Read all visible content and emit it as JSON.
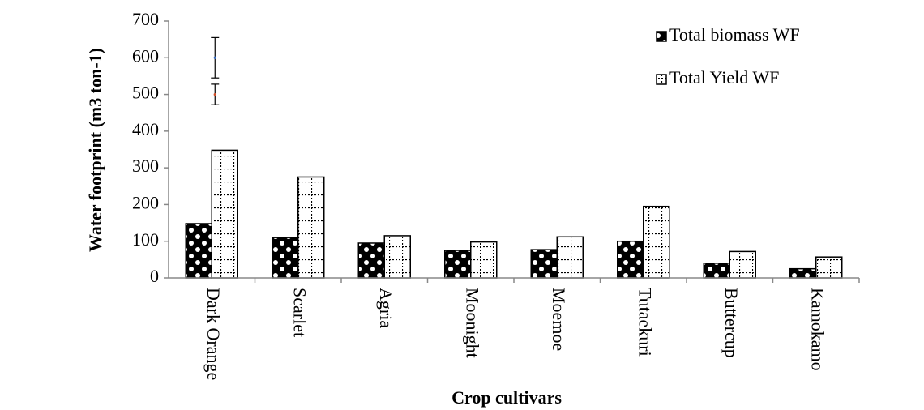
{
  "chart_data": {
    "type": "bar",
    "x_label": "Crop cultivars",
    "y_label": "Water footprint (m3 ton-1)",
    "categories": [
      "Dark Orange",
      "Scarlet",
      "Agria",
      "Moonight",
      "Moemoe",
      "Tutaekuri",
      "Buttercup",
      "Kamokamo"
    ],
    "series": [
      {
        "name": "Total biomass WF",
        "color": "#000000",
        "values": [
          148,
          110,
          95,
          75,
          77,
          100,
          40,
          25
        ]
      },
      {
        "name": "Total Yield WF",
        "color": "#ffffff",
        "values": [
          348,
          275,
          115,
          98,
          112,
          195,
          72,
          57
        ]
      }
    ],
    "error_bars": [
      {
        "value": 600,
        "error": 55,
        "color": "#3a6fc4"
      },
      {
        "value": 500,
        "error": 28,
        "color": "#d0502a"
      }
    ],
    "ylim": [
      0,
      700
    ],
    "yticks": [
      0,
      100,
      200,
      300,
      400,
      500,
      600,
      700
    ],
    "legend": "top-right"
  }
}
